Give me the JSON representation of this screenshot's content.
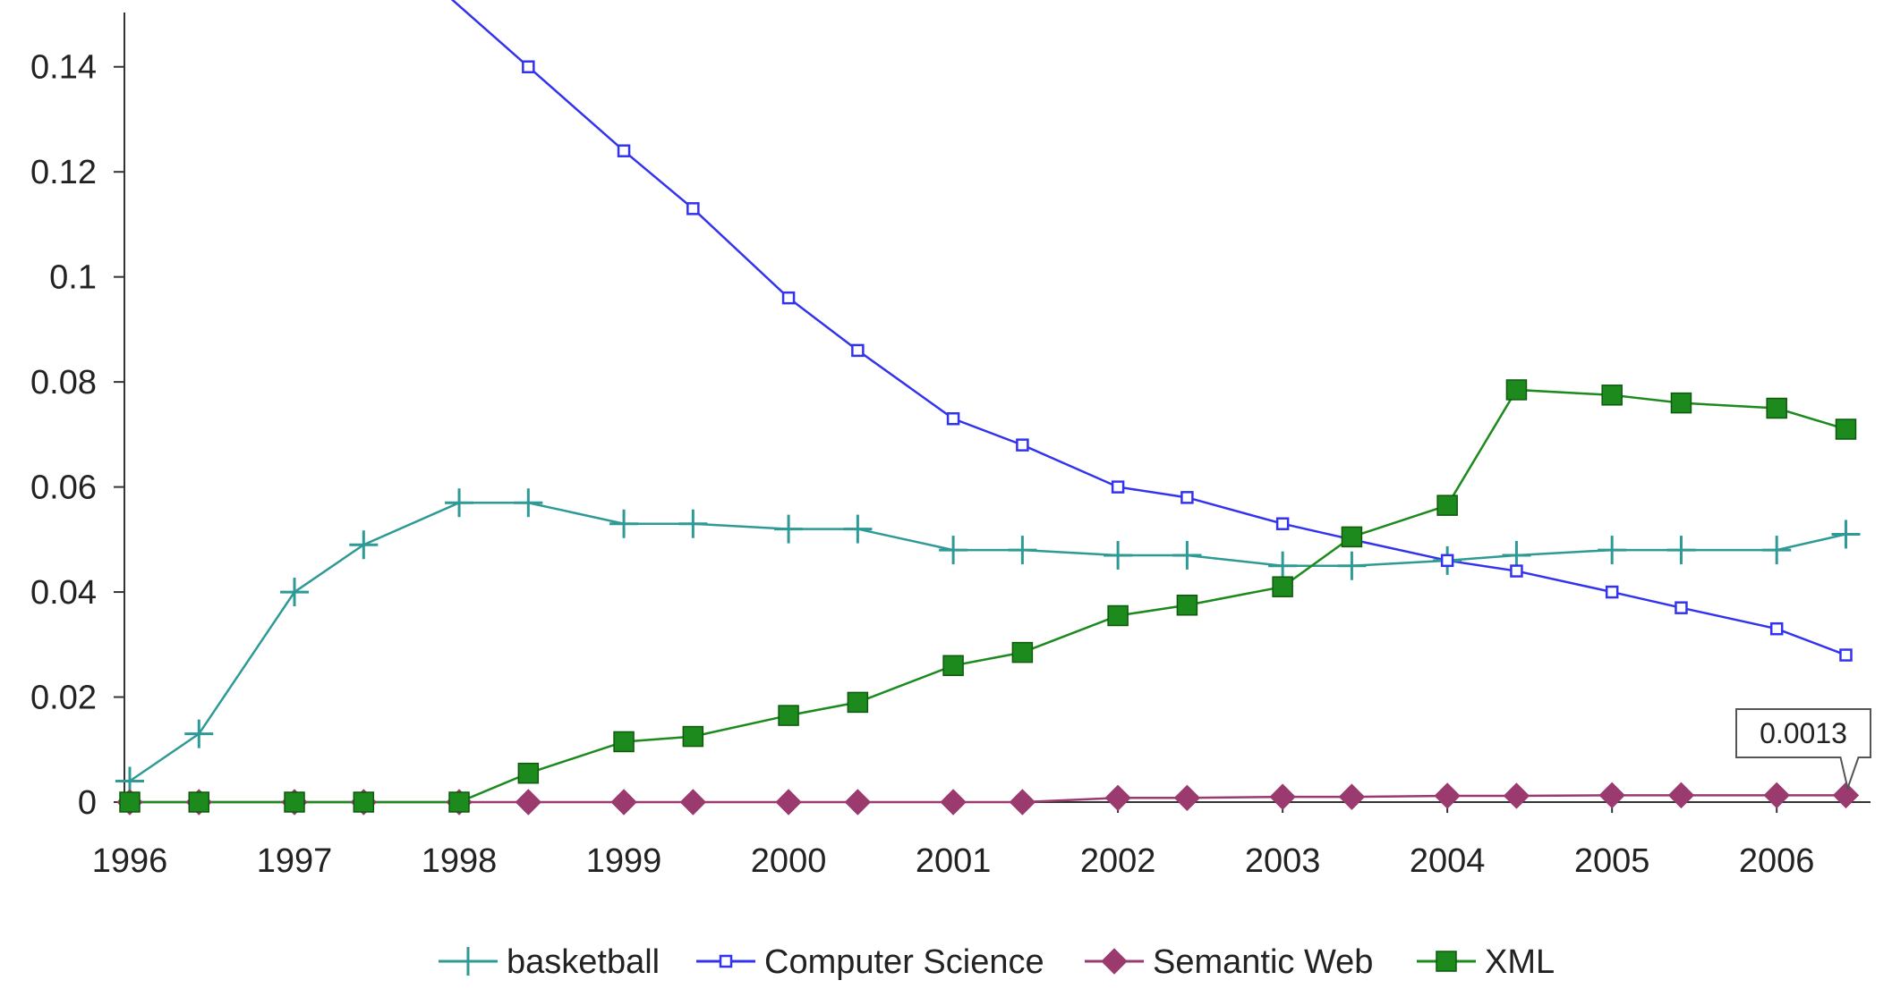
{
  "chart_data": {
    "type": "line",
    "title": "",
    "xlabel": "",
    "ylabel": "",
    "xlim": [
      1996,
      2006.45
    ],
    "ylim": [
      0,
      0.15
    ],
    "grid": false,
    "legend": {
      "placement": "bottom-center"
    },
    "x_ticks": [
      1996,
      1997,
      1998,
      1999,
      2000,
      2001,
      2002,
      2003,
      2004,
      2005,
      2006
    ],
    "x_tick_labels": [
      "1996",
      "1997",
      "1998",
      "1999",
      "2000",
      "2001",
      "2002",
      "2003",
      "2004",
      "2005",
      "2006"
    ],
    "y_ticks": [
      0,
      0.02,
      0.04,
      0.06,
      0.08,
      0.1,
      0.12,
      0.14
    ],
    "y_tick_labels": [
      "0",
      "0.02",
      "0.04",
      "0.06",
      "0.08",
      "0.1",
      "0.12",
      "0.14"
    ],
    "x": [
      1996,
      1996.42,
      1997,
      1997.42,
      1998,
      1998.42,
      1999,
      1999.42,
      2000,
      2000.42,
      2001,
      2001.42,
      2002,
      2002.42,
      2003,
      2003.42,
      2004,
      2004.42,
      2005,
      2005.42,
      2006,
      2006.42
    ],
    "series": [
      {
        "name": "basketball",
        "color": "#2e9a95",
        "marker": "plus",
        "values": [
          0.004,
          0.013,
          0.04,
          0.049,
          0.057,
          0.057,
          0.053,
          0.053,
          0.052,
          0.052,
          0.048,
          0.048,
          0.047,
          0.047,
          0.045,
          0.045,
          0.046,
          0.047,
          0.048,
          0.048,
          0.048,
          0.051
        ]
      },
      {
        "name": "Computer Science",
        "color": "#3333ee",
        "marker": "open-square",
        "values": [
          null,
          null,
          null,
          null,
          null,
          0.14,
          0.124,
          0.113,
          0.096,
          0.086,
          0.073,
          0.068,
          0.06,
          0.058,
          0.053,
          0.05,
          0.046,
          0.044,
          0.04,
          0.037,
          0.033,
          0.028
        ],
        "note": "line continues above the plotted range before 1998.42"
      },
      {
        "name": "Semantic Web",
        "color": "#9b3a6e",
        "marker": "diamond",
        "values": [
          0,
          0,
          0,
          0,
          0,
          0,
          0,
          0,
          0,
          0,
          0,
          0,
          0.0008,
          0.0008,
          0.001,
          0.001,
          0.0012,
          0.0012,
          0.0013,
          0.0013,
          0.0013,
          0.0013
        ]
      },
      {
        "name": "XML",
        "color": "#1c8a1c",
        "marker": "filled-square",
        "values": [
          0,
          0,
          0,
          0,
          0,
          0.0055,
          0.0115,
          0.0125,
          0.0165,
          0.019,
          0.026,
          0.0285,
          0.0355,
          0.0375,
          0.041,
          0.0505,
          0.0565,
          0.0785,
          0.0775,
          0.076,
          0.075,
          0.071
        ]
      }
    ],
    "annotations": [
      {
        "text": "0.0013",
        "series": "Semantic Web",
        "x": 2006.42,
        "y": 0.0013
      }
    ]
  }
}
